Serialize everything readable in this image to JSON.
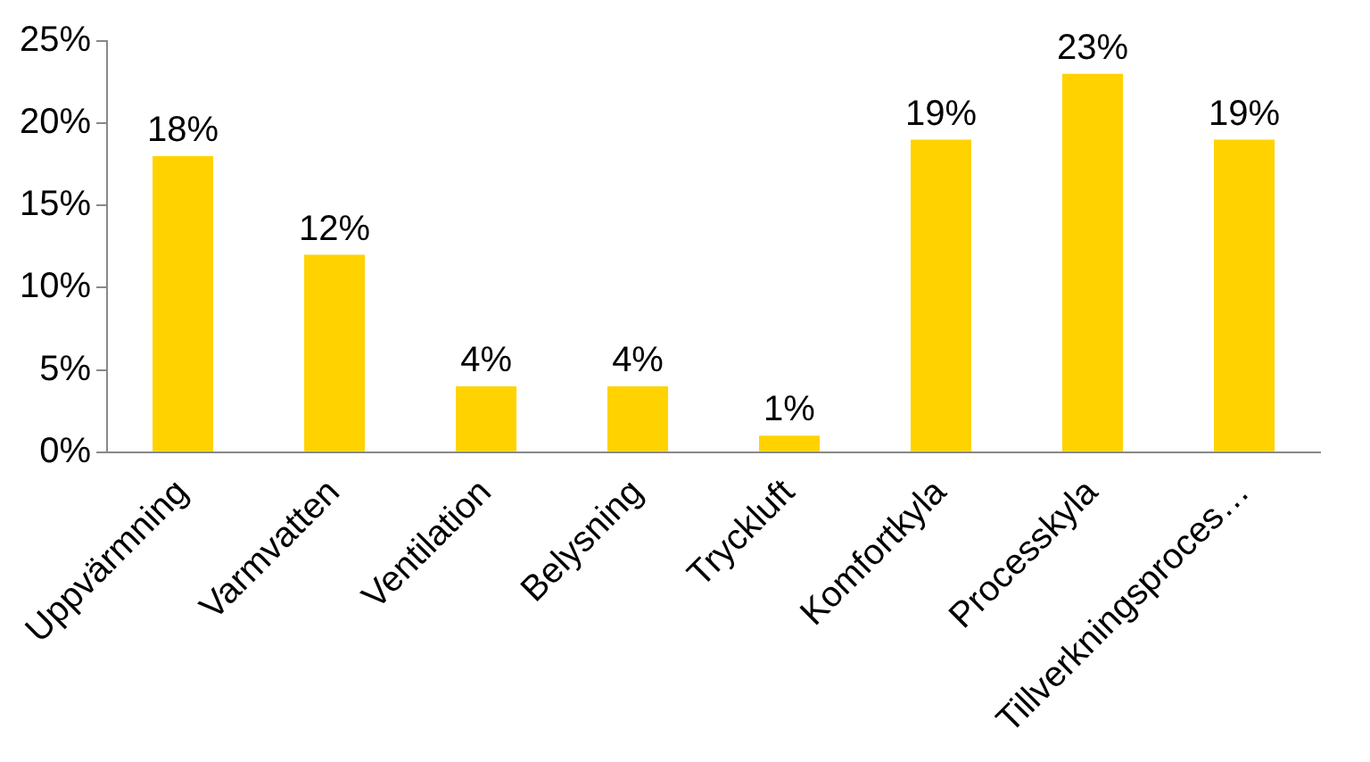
{
  "chart_data": {
    "type": "bar",
    "categories": [
      "Uppvärmning",
      "Varmvatten",
      "Ventilation",
      "Belysning",
      "Tryckluft",
      "Komfortkyla",
      "Processkyla",
      "Tillverkningsproces…"
    ],
    "values": [
      18,
      12,
      4,
      4,
      1,
      19,
      23,
      19
    ],
    "value_labels": [
      "18%",
      "12%",
      "4%",
      "4%",
      "1%",
      "19%",
      "23%",
      "19%"
    ],
    "color": "#ffd200",
    "ylim": [
      0,
      25
    ],
    "yticks": [
      {
        "value": 0,
        "label": "0%"
      },
      {
        "value": 5,
        "label": "5%"
      },
      {
        "value": 10,
        "label": "10%"
      },
      {
        "value": 15,
        "label": "15%"
      },
      {
        "value": 20,
        "label": "20%"
      },
      {
        "value": 25,
        "label": "25%"
      }
    ],
    "grid": false,
    "legend": false
  }
}
